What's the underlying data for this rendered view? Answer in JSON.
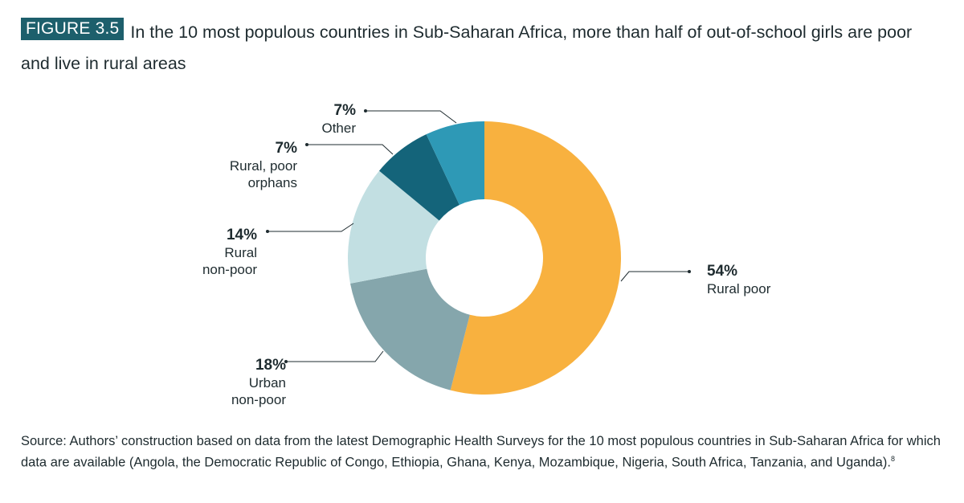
{
  "figure": {
    "tag": "FIGURE 3.5",
    "title": "In the 10 most populous countries in Sub-Saharan Africa, more than half of out-of-school girls are poor and live in rural areas"
  },
  "chart_data": {
    "type": "pie",
    "donut": true,
    "slices": [
      {
        "label_lines": [
          "Rural poor"
        ],
        "pct_label": "54%",
        "value": 54,
        "color": "#f8b13f"
      },
      {
        "label_lines": [
          "Urban",
          "non-poor"
        ],
        "pct_label": "18%",
        "value": 18,
        "color": "#85a6ac"
      },
      {
        "label_lines": [
          "Rural",
          "non-poor"
        ],
        "pct_label": "14%",
        "value": 14,
        "color": "#c2dfe2"
      },
      {
        "label_lines": [
          "Rural, poor",
          "orphans"
        ],
        "pct_label": "7%",
        "value": 7,
        "color": "#14647a"
      },
      {
        "label_lines": [
          "Other"
        ],
        "pct_label": "7%",
        "value": 7,
        "color": "#2e99b6"
      }
    ]
  },
  "source": {
    "text": "Source: Authors’ construction based on data from the latest Demographic Health Surveys for the 10 most populous countries in Sub-Saharan Africa for which data are available (Angola, the Democratic Republic of Congo, Ethiopia, Ghana, Kenya, Mozambique, Nigeria, South Africa, Tanzania, and Uganda).",
    "note": "8"
  }
}
